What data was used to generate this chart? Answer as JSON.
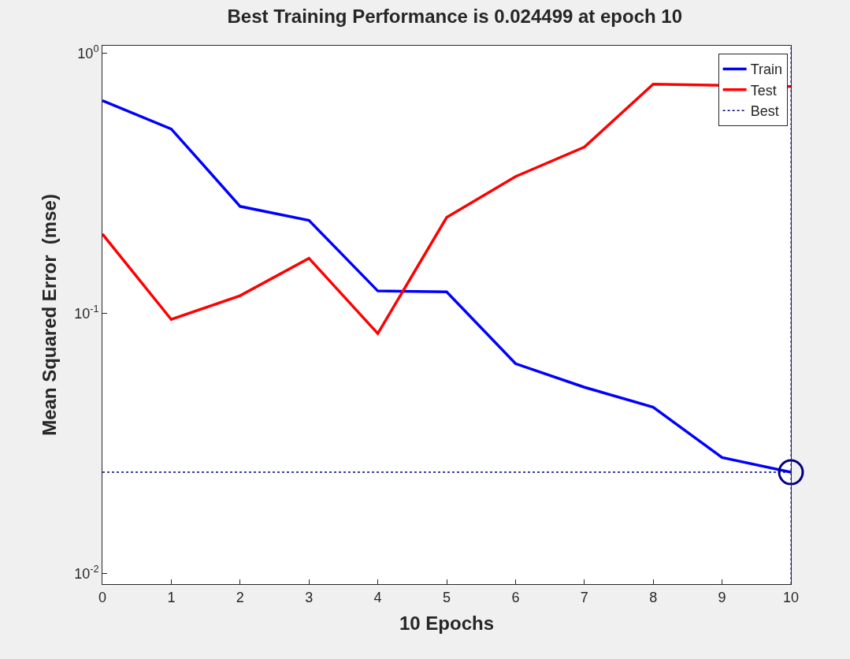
{
  "chart_data": {
    "type": "line",
    "title": "Best Training Performance is 0.024499 at epoch 10",
    "xlabel": "10 Epochs",
    "ylabel": "Mean Squared Error  (mse)",
    "x": [
      0,
      1,
      2,
      3,
      4,
      5,
      6,
      7,
      8,
      9,
      10
    ],
    "series": [
      {
        "name": "Train",
        "color": "#0000ff",
        "values": [
          0.658,
          0.512,
          0.258,
          0.228,
          0.122,
          0.121,
          0.0641,
          0.052,
          0.0436,
          0.0279,
          0.024499
        ]
      },
      {
        "name": "Test",
        "color": "#ff0000",
        "values": [
          0.202,
          0.0948,
          0.117,
          0.163,
          0.0837,
          0.234,
          0.336,
          0.436,
          0.762,
          null,
          0.746
        ]
      },
      {
        "name": "Best",
        "color": "#00007f",
        "line_style": "dotted",
        "values": [
          0.024499,
          0.024499,
          0.024499,
          0.024499,
          0.024499,
          0.024499,
          0.024499,
          0.024499,
          0.024499,
          0.024499,
          0.024499
        ]
      },
      {
        "type": "scatter",
        "marker": "circle",
        "color": "#00007f",
        "x": [
          10
        ],
        "values": [
          0.024499
        ]
      }
    ],
    "ref_lines": [
      {
        "axis": "x",
        "value": 10,
        "color": "#00007f",
        "line_style": "dotted"
      }
    ],
    "log": "y",
    "xlim": [
      0,
      10
    ],
    "xticks": [
      0,
      1,
      2,
      3,
      4,
      5,
      6,
      7,
      8,
      9,
      10
    ],
    "ylim": [
      0.0091,
      1.07
    ],
    "yticks": [
      {
        "value": 0.01,
        "label": "10$^{-2}$"
      },
      {
        "value": 0.1,
        "label": "10$^{-1}$"
      },
      {
        "value": 1,
        "label": "10$^{0}$"
      }
    ],
    "grid": false,
    "legend": "top right",
    "line_style": "solid"
  }
}
